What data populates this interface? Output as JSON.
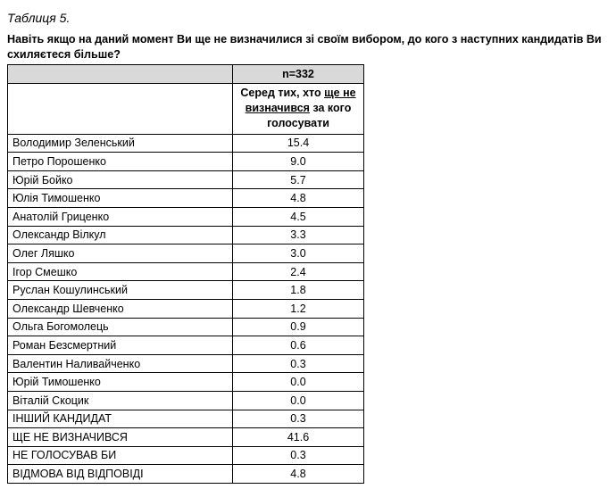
{
  "caption": "Таблиця 5.",
  "question": "Навіть якщо на даний момент Ви ще не визначилися зі своїм вибором, до кого з наступних кандидатів Ви схиляєтеся більше?",
  "table": {
    "sample": "n=332",
    "column_header": [
      "Серед тих, хто ",
      "ще не визначився",
      " за кого голосувати"
    ],
    "rows": [
      [
        "Володимир Зеленський",
        "15.4"
      ],
      [
        "Петро Порошенко",
        "9.0"
      ],
      [
        "Юрій Бойко",
        "5.7"
      ],
      [
        "Юлія Тимошенко",
        "4.8"
      ],
      [
        "Анатолій Гриценко",
        "4.5"
      ],
      [
        "Олександр Вілкул",
        "3.3"
      ],
      [
        "Олег Ляшко",
        "3.0"
      ],
      [
        "Ігор Смешко",
        "2.4"
      ],
      [
        "Руслан Кошулинський",
        "1.8"
      ],
      [
        "Олександр Шевченко",
        "1.2"
      ],
      [
        "Ольга Богомолець",
        "0.9"
      ],
      [
        "Роман Безсмертний",
        "0.6"
      ],
      [
        "Валентин Наливайченко",
        "0.3"
      ],
      [
        "Юрій Тимошенко",
        "0.0"
      ],
      [
        "Віталій Скоцик",
        "0.0"
      ],
      [
        "ІНШИЙ КАНДИДАТ",
        "0.3"
      ],
      [
        "ЩЕ НЕ ВИЗНАЧИВСЯ",
        "41.6"
      ],
      [
        "НЕ ГОЛОСУВАВ БИ",
        "0.3"
      ],
      [
        "ВІДМОВА ВІД ВІДПОВІДІ",
        "4.8"
      ]
    ]
  }
}
